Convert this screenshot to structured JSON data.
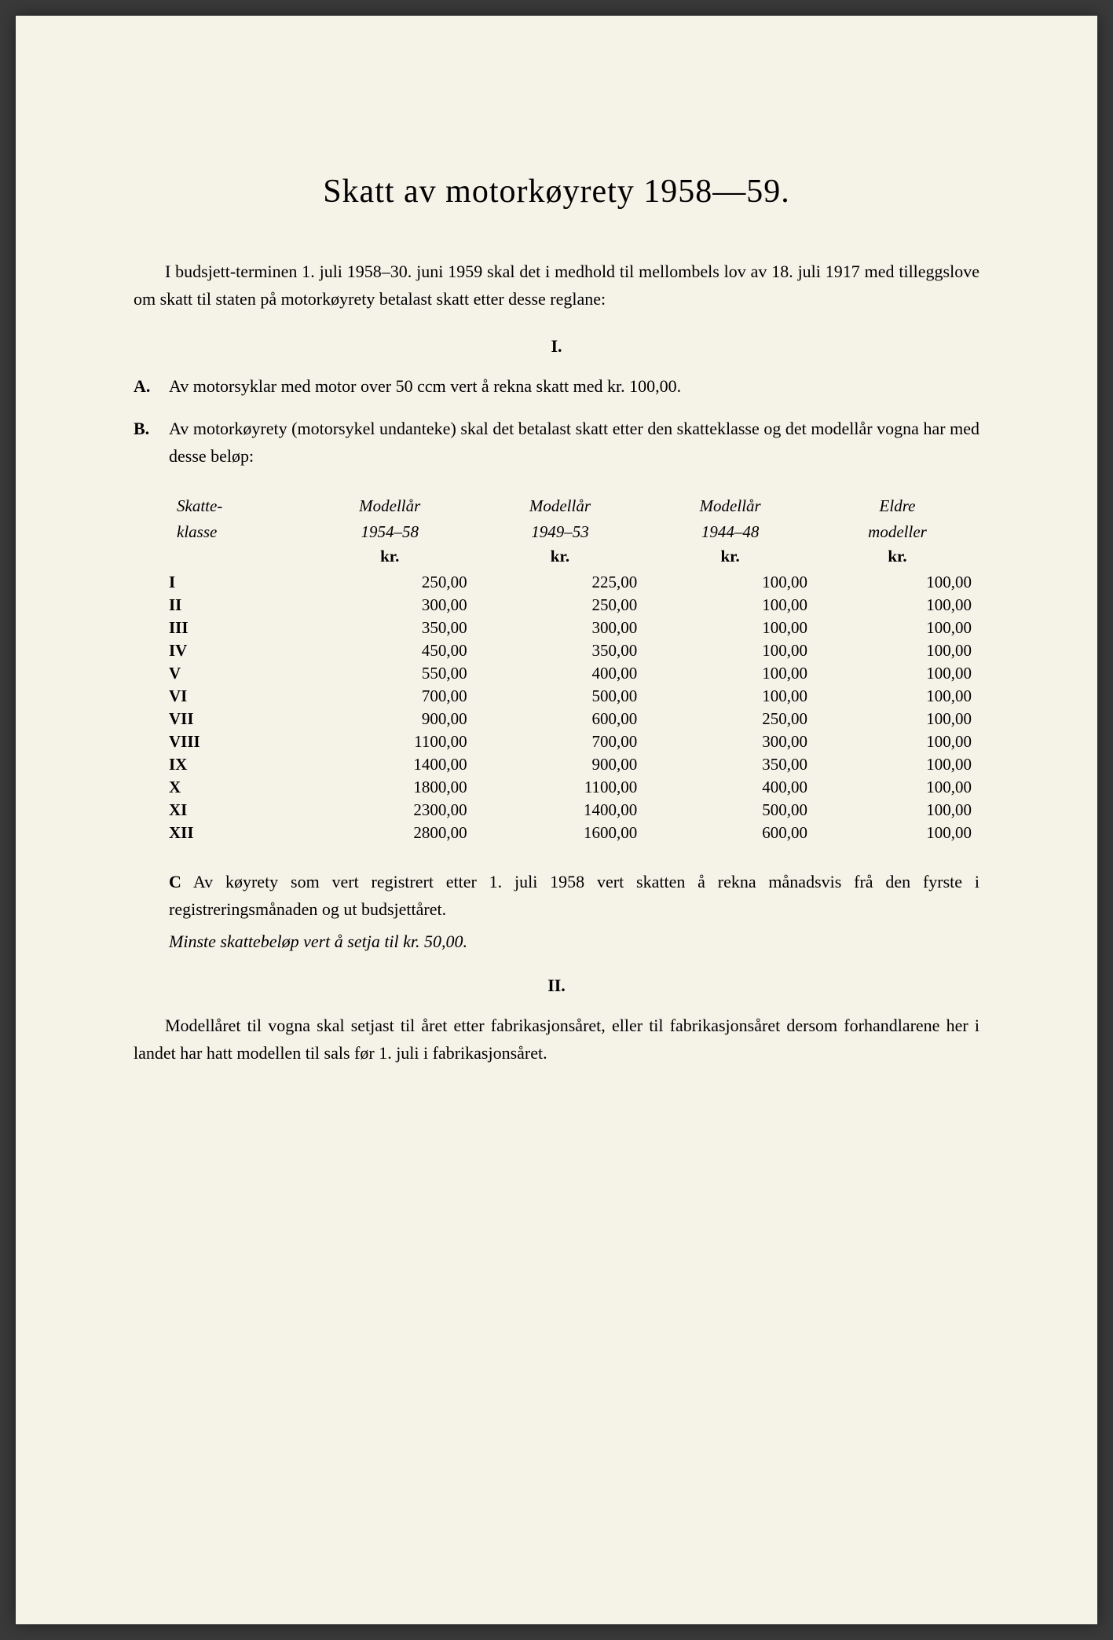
{
  "title": "Skatt av motorkøyrety 1958—59.",
  "intro": "I budsjett-terminen 1. juli 1958–30. juni 1959 skal det i medhold til mellombels lov av 18. juli 1917 med tilleggslove om skatt til staten på motorkøyrety betalast skatt etter desse reglane:",
  "section_i": "I.",
  "item_a": {
    "label": "A.",
    "text": "Av motorsyklar med motor over 50 ccm vert å rekna skatt med kr. 100,00."
  },
  "item_b": {
    "label": "B.",
    "text": "Av motorkøyrety (motorsykel undanteke) skal det betalast skatt etter den skatteklasse og det modellår vogna har med desse beløp:"
  },
  "table": {
    "headers": {
      "col1_line1": "Skatte-",
      "col1_line2": "klasse",
      "col2_line1": "Modellår",
      "col2_line2": "1954–58",
      "col3_line1": "Modellår",
      "col3_line2": "1949–53",
      "col4_line1": "Modellår",
      "col4_line2": "1944–48",
      "col5_line1": "Eldre",
      "col5_line2": "modeller"
    },
    "unit": "kr.",
    "rows": [
      {
        "class": "I",
        "c1": "250,00",
        "c2": "225,00",
        "c3": "100,00",
        "c4": "100,00"
      },
      {
        "class": "II",
        "c1": "300,00",
        "c2": "250,00",
        "c3": "100,00",
        "c4": "100,00"
      },
      {
        "class": "III",
        "c1": "350,00",
        "c2": "300,00",
        "c3": "100,00",
        "c4": "100,00"
      },
      {
        "class": "IV",
        "c1": "450,00",
        "c2": "350,00",
        "c3": "100,00",
        "c4": "100,00"
      },
      {
        "class": "V",
        "c1": "550,00",
        "c2": "400,00",
        "c3": "100,00",
        "c4": "100,00"
      },
      {
        "class": "VI",
        "c1": "700,00",
        "c2": "500,00",
        "c3": "100,00",
        "c4": "100,00"
      },
      {
        "class": "VII",
        "c1": "900,00",
        "c2": "600,00",
        "c3": "250,00",
        "c4": "100,00"
      },
      {
        "class": "VIII",
        "c1": "1100,00",
        "c2": "700,00",
        "c3": "300,00",
        "c4": "100,00"
      },
      {
        "class": "IX",
        "c1": "1400,00",
        "c2": "900,00",
        "c3": "350,00",
        "c4": "100,00"
      },
      {
        "class": "X",
        "c1": "1800,00",
        "c2": "1100,00",
        "c3": "400,00",
        "c4": "100,00"
      },
      {
        "class": "XI",
        "c1": "2300,00",
        "c2": "1400,00",
        "c3": "500,00",
        "c4": "100,00"
      },
      {
        "class": "XII",
        "c1": "2800,00",
        "c2": "1600,00",
        "c3": "600,00",
        "c4": "100,00"
      }
    ]
  },
  "item_c": {
    "label": "C",
    "text": "Av køyrety som vert registrert etter 1. juli 1958 vert skatten å rekna månadsvis frå den fyrste i registreringsmånaden og ut budsjettåret.",
    "note": "Minste skattebeløp vert å setja til kr. 50,00."
  },
  "section_ii": "II.",
  "para_ii": "Modellåret til vogna skal setjast til året etter fabrikasjonsåret, eller til fabrikasjonsåret dersom forhandlarene her i landet har hatt modellen til sals før 1. juli i fabrikasjonsåret.",
  "colors": {
    "page_bg": "#f5f2e8",
    "text": "#1a1a1a",
    "body_bg": "#3a3a3a"
  },
  "typography": {
    "title_size": 42,
    "body_size": 22,
    "table_size": 21
  }
}
